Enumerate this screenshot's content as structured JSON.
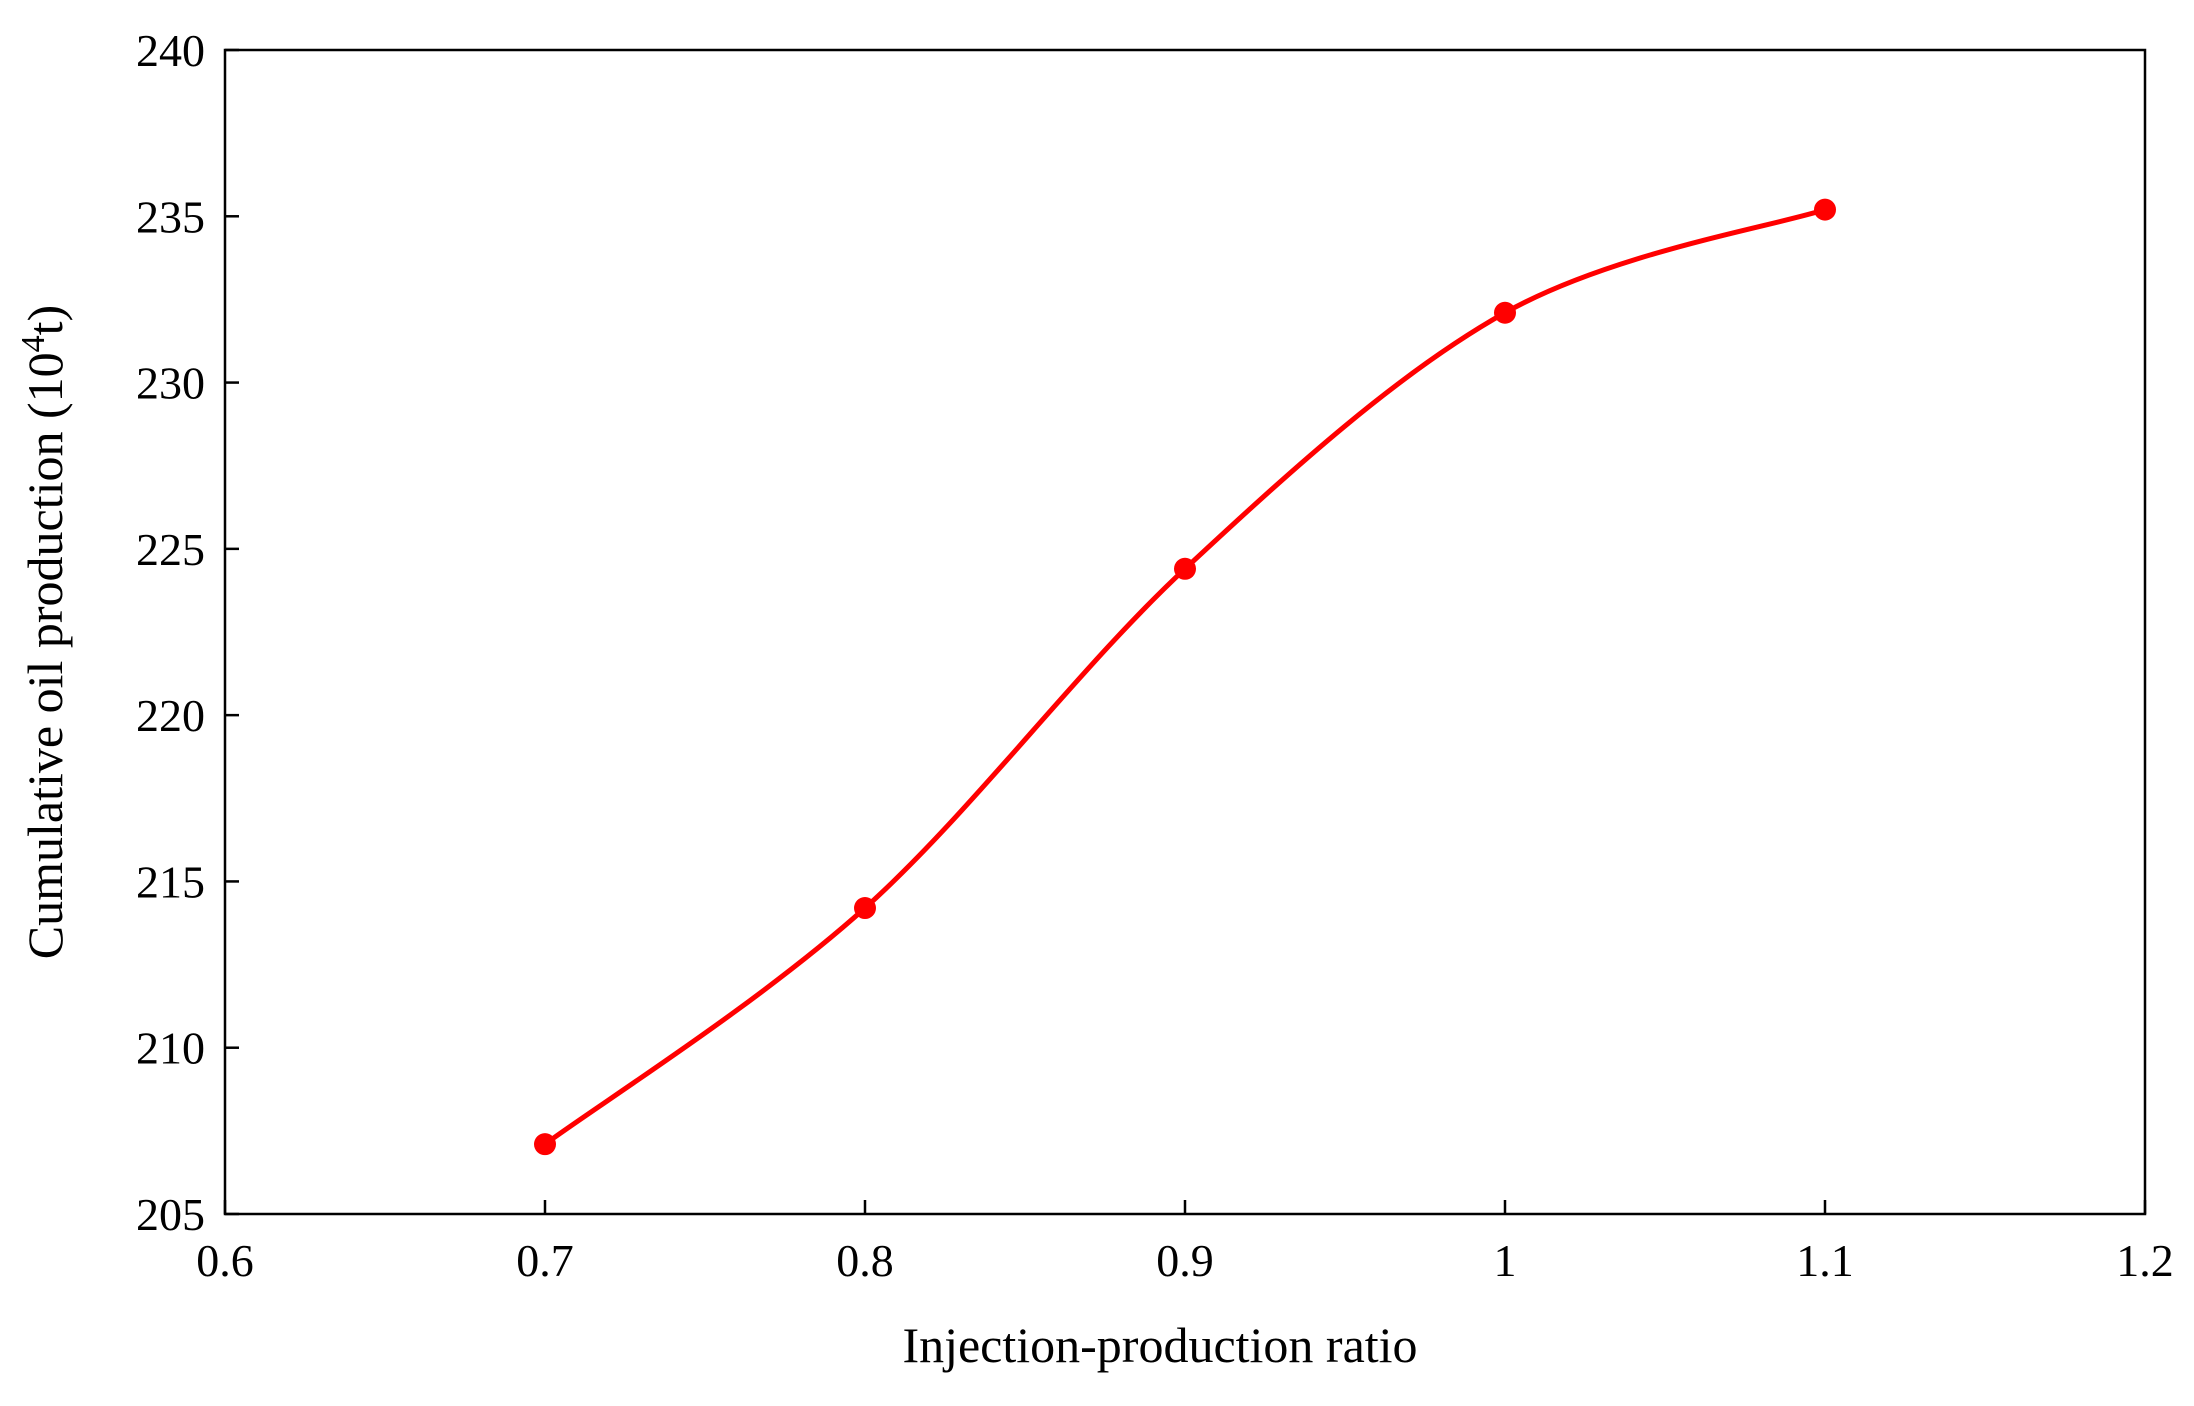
{
  "chart_data": {
    "type": "line",
    "title": "",
    "xlabel": "Injection-production ratio",
    "ylabel": {
      "prefix": "Cumulative oil production (10",
      "superscript": "4",
      "suffix": "t)"
    },
    "xlim": [
      0.6,
      1.2
    ],
    "ylim": [
      205,
      240
    ],
    "xticks": [
      0.6,
      0.7,
      0.8,
      0.9,
      1.0,
      1.1,
      1.2
    ],
    "xtick_labels": [
      "0.6",
      "0.7",
      "0.8",
      "0.9",
      "1",
      "1.1",
      "1.2"
    ],
    "yticks": [
      205,
      210,
      215,
      220,
      225,
      230,
      235,
      240
    ],
    "ytick_labels": [
      "205",
      "210",
      "215",
      "220",
      "225",
      "230",
      "235",
      "240"
    ],
    "grid": false,
    "legend": "none",
    "series": [
      {
        "x": [
          0.7,
          0.8,
          0.9,
          1.0,
          1.1
        ],
        "y": [
          207.1,
          214.2,
          224.4,
          232.1,
          235.2
        ],
        "color": "#ff0000",
        "marker": "circle",
        "smooth": true
      }
    ]
  }
}
